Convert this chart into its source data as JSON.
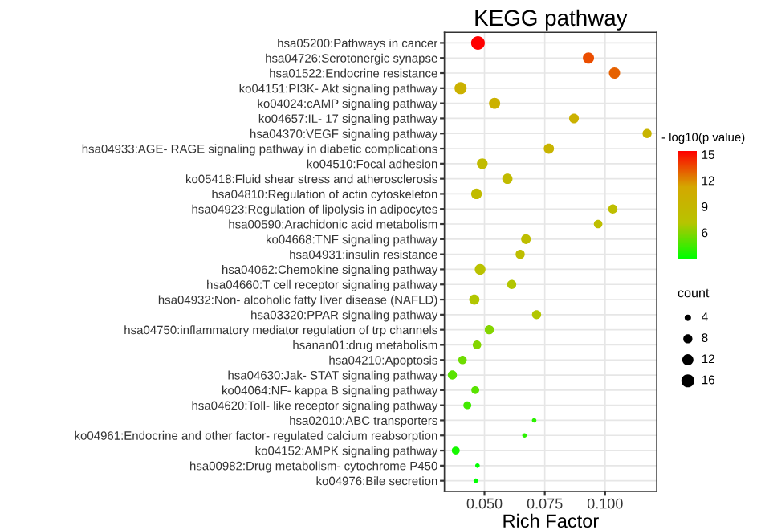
{
  "chart_data": {
    "type": "bubble",
    "orientation": "horizontal",
    "title": "KEGG pathway",
    "xlabel": "Rich Factor",
    "legend_title": "count",
    "clabel": "- log10(p value)",
    "categories": [
      "hsa05200:Pathways in cancer",
      "hsa04726:Serotonergic synapse",
      "hsa01522:Endocrine resistance",
      "ko04151:PI3K- Akt signaling pathway",
      "ko04024:cAMP signaling pathway",
      "ko04657:IL- 17 signaling pathway",
      "hsa04370:VEGF signaling pathway",
      "hsa04933:AGE- RAGE signaling pathway in diabetic complications",
      "ko04510:Focal adhesion",
      "ko05418:Fluid shear stress and atherosclerosis",
      "hsa04810:Regulation of actin cytoskeleton",
      "hsa04923:Regulation of lipolysis in adipocytes",
      "hsa00590:Arachidonic acid metabolism",
      "ko04668:TNF signaling pathway",
      "hsa04931:insulin resistance",
      "hsa04062:Chemokine signaling pathway",
      "hsa04660:T cell receptor signaling pathway",
      "hsa04932:Non- alcoholic fatty liver disease (NAFLD)",
      "hsa03320:PPAR signaling pathway",
      "hsa04750:inflammatory mediator regulation of trp channels",
      "hsanan01:drug metabolism",
      "hsa04210:Apoptosis",
      "hsa04630:Jak- STAT signaling pathway",
      "ko04064:NF- kappa B signaling pathway",
      "hsa04620:Toll- like receptor signaling pathway",
      "hsa02010:ABC transporters",
      "ko04961:Endocrine and other factor- regulated calcium reabsorption",
      "ko04152:AMPK signaling pathway",
      "hsa00982:Drug metabolism- cytochrome P450",
      "ko04976:Bile secretion"
    ],
    "values": [
      0.0473,
      0.0931,
      0.1039,
      0.0401,
      0.0542,
      0.0871,
      0.1174,
      0.0767,
      0.0491,
      0.0595,
      0.0467,
      0.1032,
      0.0971,
      0.0672,
      0.0648,
      0.0482,
      0.0613,
      0.0458,
      0.0716,
      0.052,
      0.0469,
      0.0409,
      0.0367,
      0.0462,
      0.0429,
      0.0706,
      0.0666,
      0.0381,
      0.0471,
      0.0464
    ],
    "sizes": [
      18,
      12,
      12,
      14,
      12,
      9,
      8,
      10,
      11,
      10,
      11,
      8,
      7,
      9,
      8,
      11,
      8,
      10,
      8,
      8,
      7,
      7,
      8,
      6,
      6,
      2,
      2,
      6,
      2,
      2
    ],
    "cvalues": [
      15.4,
      13.5,
      13,
      10,
      10,
      10,
      9.5,
      9.5,
      8.5,
      8.5,
      8.5,
      8,
      8,
      8,
      8,
      7.5,
      7,
      7,
      7,
      6,
      6,
      5.5,
      5,
      5,
      4.5,
      4,
      4,
      3.5,
      3,
      3
    ],
    "size_legend": [
      4,
      8,
      12,
      16
    ],
    "clim": [
      3,
      15.4
    ],
    "cticks": [
      6,
      9,
      12,
      15
    ],
    "xlim": [
      0.0334,
      0.1214
    ],
    "xticks": [
      {
        "value": 0.05,
        "label": "0.050"
      },
      {
        "value": 0.075,
        "label": "0.075"
      },
      {
        "value": 0.1,
        "label": "0.100"
      }
    ],
    "grid": true
  }
}
